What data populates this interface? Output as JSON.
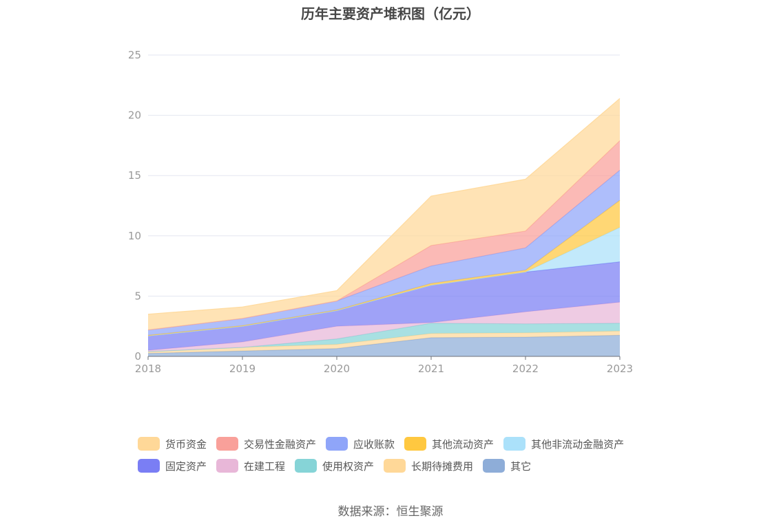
{
  "source": "数据来源：恒生聚源",
  "chart_data": {
    "type": "area",
    "stacked": true,
    "title": "历年主要资产堆积图（亿元）",
    "categories": [
      "2018",
      "2019",
      "2020",
      "2021",
      "2022",
      "2023"
    ],
    "y_ticks": [
      "0",
      "5",
      "10",
      "15",
      "20",
      "25"
    ],
    "ylim": [
      0,
      25
    ],
    "grid": true,
    "legend_position": "bottom",
    "series": [
      {
        "name": "其它",
        "color": "#8eadd8",
        "values": [
          0.25,
          0.45,
          0.65,
          1.55,
          1.6,
          1.75
        ]
      },
      {
        "name": "长期待摊费用",
        "color": "#ffd898",
        "values": [
          0.15,
          0.3,
          0.35,
          0.35,
          0.35,
          0.35
        ]
      },
      {
        "name": "使用权资产",
        "color": "#86d4d7",
        "values": [
          0.0,
          0.0,
          0.45,
          0.85,
          0.75,
          0.65
        ]
      },
      {
        "name": "在建工程",
        "color": "#e8b7d8",
        "values": [
          0.1,
          0.45,
          1.05,
          0.05,
          1.0,
          1.75
        ]
      },
      {
        "name": "固定资产",
        "color": "#7a7ef4",
        "values": [
          1.2,
          1.3,
          1.3,
          3.1,
          3.3,
          3.35
        ]
      },
      {
        "name": "其他非流动金融资产",
        "color": "#abe1fa",
        "values": [
          0.0,
          0.0,
          0.0,
          0.0,
          0.0,
          2.85
        ]
      },
      {
        "name": "其他流动资产",
        "color": "#ffc840",
        "values": [
          0.05,
          0.05,
          0.05,
          0.15,
          0.15,
          2.25
        ]
      },
      {
        "name": "应收账款",
        "color": "#8fa5f9",
        "values": [
          0.45,
          0.6,
          0.75,
          1.45,
          1.85,
          2.5
        ]
      },
      {
        "name": "交易性金融资产",
        "color": "#f9a09a",
        "values": [
          0.0,
          0.0,
          0.0,
          1.7,
          1.4,
          2.45
        ]
      },
      {
        "name": "货币资金",
        "color": "#ffd898",
        "values": [
          1.3,
          0.95,
          0.85,
          4.1,
          4.3,
          3.5
        ]
      }
    ],
    "legend_order": [
      "货币资金",
      "交易性金融资产",
      "应收账款",
      "其他流动资产",
      "其他非流动金融资产",
      "固定资产",
      "在建工程",
      "使用权资产",
      "长期待摊费用",
      "其它"
    ]
  }
}
